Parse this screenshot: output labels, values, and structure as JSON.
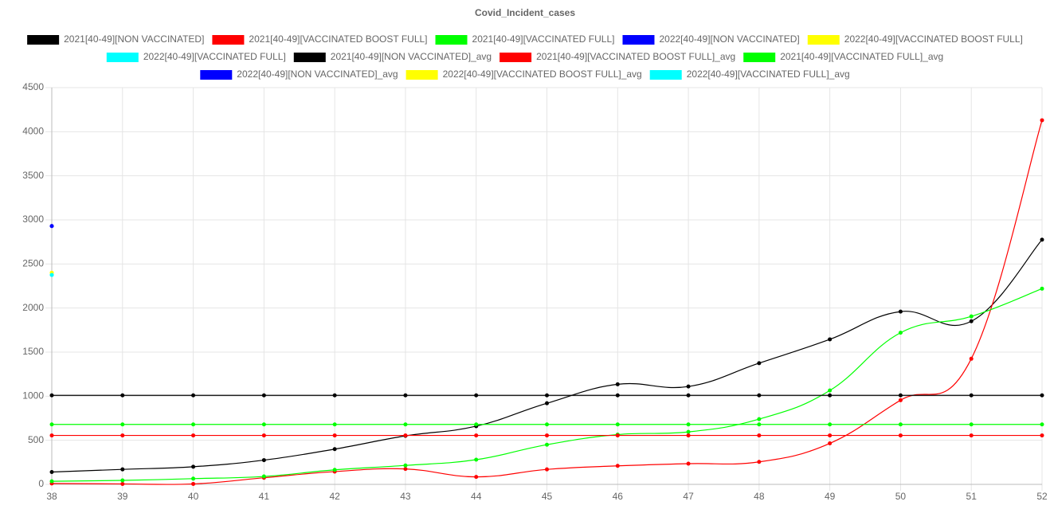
{
  "chart_data": {
    "type": "line",
    "title": "Covid_Incident_cases",
    "categories": [
      38,
      39,
      40,
      41,
      42,
      43,
      44,
      45,
      46,
      47,
      48,
      49,
      50,
      51,
      52
    ],
    "ylim": [
      0,
      4500
    ],
    "yticks": [
      0,
      500,
      1000,
      1500,
      2000,
      2500,
      3000,
      3500,
      4000,
      4500
    ],
    "grid": true,
    "series": [
      {
        "name": "2021[40-49][NON VACCINATED]",
        "color": "#000000",
        "values": [
          140,
          170,
          200,
          275,
          400,
          550,
          660,
          920,
          1135,
          1110,
          1375,
          1645,
          1960,
          1850,
          2775
        ]
      },
      {
        "name": "2021[40-49][VACCINATED BOOST FULL]",
        "color": "#ff0000",
        "values": [
          10,
          5,
          5,
          75,
          145,
          175,
          85,
          170,
          210,
          235,
          255,
          465,
          955,
          1425,
          4130
        ]
      },
      {
        "name": "2021[40-49][VACCINATED FULL]",
        "color": "#00ff00",
        "values": [
          35,
          45,
          65,
          90,
          165,
          215,
          280,
          450,
          565,
          595,
          740,
          1065,
          1720,
          1905,
          2220
        ]
      },
      {
        "name": "2022[40-49][NON VACCINATED]",
        "color": "#0000ff",
        "values": [
          2930,
          null,
          null,
          null,
          null,
          null,
          null,
          null,
          null,
          null,
          null,
          null,
          null,
          null,
          null
        ]
      },
      {
        "name": "2022[40-49][VACCINATED BOOST FULL]",
        "color": "#ffff00",
        "values": [
          2400,
          null,
          null,
          null,
          null,
          null,
          null,
          null,
          null,
          null,
          null,
          null,
          null,
          null,
          null
        ]
      },
      {
        "name": "2022[40-49][VACCINATED FULL]",
        "color": "#00ffff",
        "values": [
          2375,
          null,
          null,
          null,
          null,
          null,
          null,
          null,
          null,
          null,
          null,
          null,
          null,
          null,
          null
        ]
      },
      {
        "name": "2021[40-49][NON VACCINATED]_avg",
        "color": "#000000",
        "values": [
          1010,
          1010,
          1010,
          1010,
          1010,
          1010,
          1010,
          1010,
          1010,
          1010,
          1010,
          1010,
          1010,
          1010,
          1010
        ]
      },
      {
        "name": "2021[40-49][VACCINATED BOOST FULL]_avg",
        "color": "#ff0000",
        "values": [
          555,
          555,
          555,
          555,
          555,
          555,
          555,
          555,
          555,
          555,
          555,
          555,
          555,
          555,
          555
        ]
      },
      {
        "name": "2021[40-49][VACCINATED FULL]_avg",
        "color": "#00ff00",
        "values": [
          680,
          680,
          680,
          680,
          680,
          680,
          680,
          680,
          680,
          680,
          680,
          680,
          680,
          680,
          680
        ]
      },
      {
        "name": "2022[40-49][NON VACCINATED]_avg",
        "color": "#0000ff",
        "values": [
          2930,
          null,
          null,
          null,
          null,
          null,
          null,
          null,
          null,
          null,
          null,
          null,
          null,
          null,
          null
        ]
      },
      {
        "name": "2022[40-49][VACCINATED BOOST FULL]_avg",
        "color": "#ffff00",
        "values": [
          2400,
          null,
          null,
          null,
          null,
          null,
          null,
          null,
          null,
          null,
          null,
          null,
          null,
          null,
          null
        ]
      },
      {
        "name": "2022[40-49][VACCINATED FULL]_avg",
        "color": "#00ffff",
        "values": [
          2375,
          null,
          null,
          null,
          null,
          null,
          null,
          null,
          null,
          null,
          null,
          null,
          null,
          null,
          null
        ]
      }
    ]
  }
}
